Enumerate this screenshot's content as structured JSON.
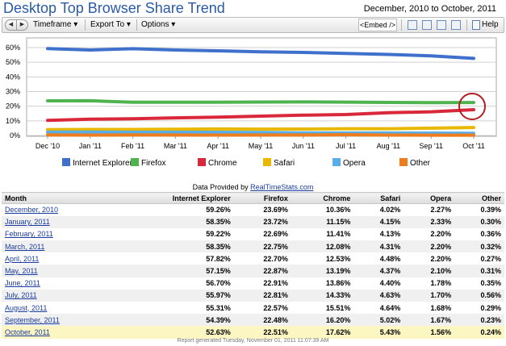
{
  "header": {
    "title": "Desktop Top Browser Share Trend",
    "date_range": "December, 2010 to October, 2011"
  },
  "toolbar": {
    "timeframe_label": "Timeframe ▾",
    "export_label": "Export To ▾",
    "options_label": "Options ▾",
    "embed_label": "<Embed />",
    "help_label": "Help"
  },
  "chart_data": {
    "type": "line",
    "categories": [
      "Dec '10",
      "Jan '11",
      "Feb '11",
      "Mar '11",
      "Apr '11",
      "May '11",
      "Jun '11",
      "Jul '11",
      "Aug '11",
      "Sep '11",
      "Oct '11"
    ],
    "y_tick_labels": [
      "0%",
      "10%",
      "20%",
      "30%",
      "40%",
      "50%",
      "60%"
    ],
    "ylim": [
      0,
      60
    ],
    "grid": true,
    "legend_position": "bottom",
    "series": [
      {
        "name": "Internet Explorer",
        "color": "#3f70cc",
        "values": [
          59.26,
          58.35,
          59.22,
          58.35,
          57.82,
          57.15,
          56.7,
          55.97,
          55.31,
          54.39,
          52.63
        ]
      },
      {
        "name": "Firefox",
        "color": "#4fb34f",
        "values": [
          23.69,
          23.72,
          22.69,
          22.75,
          22.7,
          22.87,
          22.91,
          22.81,
          22.57,
          22.48,
          22.51
        ]
      },
      {
        "name": "Chrome",
        "color": "#d8283a",
        "values": [
          10.36,
          11.15,
          11.41,
          12.08,
          12.53,
          13.19,
          13.86,
          14.33,
          15.51,
          16.2,
          17.62
        ]
      },
      {
        "name": "Safari",
        "color": "#e8b800",
        "values": [
          4.02,
          4.15,
          4.13,
          4.31,
          4.48,
          4.37,
          4.4,
          4.63,
          4.64,
          5.02,
          5.43
        ]
      },
      {
        "name": "Opera",
        "color": "#5aaee8",
        "values": [
          2.27,
          2.33,
          2.2,
          2.2,
          2.2,
          2.1,
          1.78,
          1.7,
          1.68,
          1.67,
          1.56
        ]
      },
      {
        "name": "Other",
        "color": "#ee7d1e",
        "values": [
          0.39,
          0.3,
          0.36,
          0.32,
          0.27,
          0.31,
          0.35,
          0.56,
          0.29,
          0.23,
          0.24
        ]
      }
    ],
    "annotation": "circle highlighting the latest Chrome value"
  },
  "provided": {
    "prefix": "Data Provided by ",
    "link": "RealTimeStats.com"
  },
  "table": {
    "columns": [
      "Month",
      "Internet Explorer",
      "Firefox",
      "Chrome",
      "Safari",
      "Opera",
      "Other"
    ],
    "rows": [
      [
        "December, 2010",
        "59.26%",
        "23.69%",
        "10.36%",
        "4.02%",
        "2.27%",
        "0.39%"
      ],
      [
        "January, 2011",
        "58.35%",
        "23.72%",
        "11.15%",
        "4.15%",
        "2.33%",
        "0.30%"
      ],
      [
        "February, 2011",
        "59.22%",
        "22.69%",
        "11.41%",
        "4.13%",
        "2.20%",
        "0.36%"
      ],
      [
        "March, 2011",
        "58.35%",
        "22.75%",
        "12.08%",
        "4.31%",
        "2.20%",
        "0.32%"
      ],
      [
        "April, 2011",
        "57.82%",
        "22.70%",
        "12.53%",
        "4.48%",
        "2.20%",
        "0.27%"
      ],
      [
        "May, 2011",
        "57.15%",
        "22.87%",
        "13.19%",
        "4.37%",
        "2.10%",
        "0.31%"
      ],
      [
        "June, 2011",
        "56.70%",
        "22.91%",
        "13.86%",
        "4.40%",
        "1.78%",
        "0.35%"
      ],
      [
        "July, 2011",
        "55.97%",
        "22.81%",
        "14.33%",
        "4.63%",
        "1.70%",
        "0.56%"
      ],
      [
        "August, 2011",
        "55.31%",
        "22.57%",
        "15.51%",
        "4.64%",
        "1.68%",
        "0.29%"
      ],
      [
        "September, 2011",
        "54.39%",
        "22.48%",
        "16.20%",
        "5.02%",
        "1.67%",
        "0.23%"
      ],
      [
        "October, 2011",
        "52.63%",
        "22.51%",
        "17.62%",
        "5.43%",
        "1.56%",
        "0.24%"
      ]
    ]
  },
  "footer": "Report generated Tuesday, November 01, 2011 11:07:39 AM"
}
